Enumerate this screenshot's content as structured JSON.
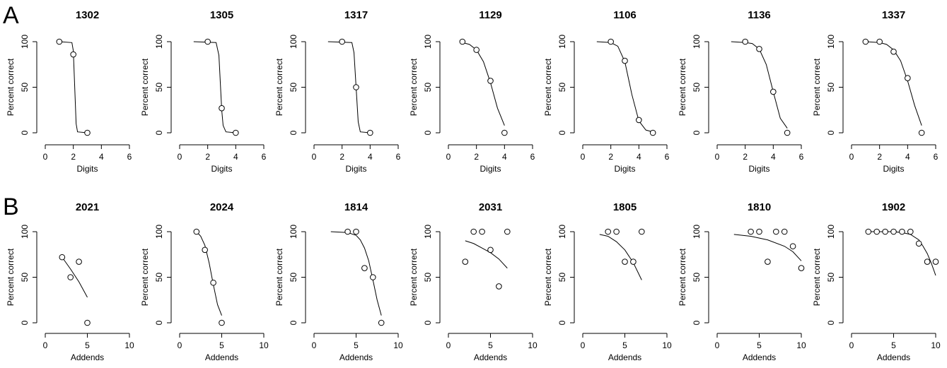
{
  "panel_labels": [
    "A",
    "B"
  ],
  "chart_data": [
    {
      "type": "scatter",
      "title": "1302",
      "xlabel": "Digits",
      "ylabel": "Percent correct",
      "xlim": [
        0,
        6
      ],
      "ylim": [
        0,
        100
      ],
      "xticks": [
        0,
        2,
        4,
        6
      ],
      "yticks": [
        0,
        50,
        100
      ],
      "x": [
        1,
        2,
        3
      ],
      "values": [
        100,
        86,
        0
      ],
      "fit": {
        "x": [
          1,
          1.9,
          2,
          2.1,
          2.2,
          2.3,
          3
        ],
        "values": [
          100,
          99,
          90,
          50,
          10,
          1,
          0
        ]
      }
    },
    {
      "type": "scatter",
      "title": "1305",
      "xlabel": "Digits",
      "ylabel": "Percent correct",
      "xlim": [
        0,
        6
      ],
      "ylim": [
        0,
        100
      ],
      "xticks": [
        0,
        2,
        4,
        6
      ],
      "yticks": [
        0,
        50,
        100
      ],
      "x": [
        2,
        3,
        4
      ],
      "values": [
        100,
        27,
        0
      ],
      "fit": {
        "x": [
          1,
          2.6,
          2.8,
          2.9,
          3,
          3.1,
          3.3,
          4
        ],
        "values": [
          100,
          99,
          85,
          55,
          25,
          8,
          1,
          0
        ]
      }
    },
    {
      "type": "scatter",
      "title": "1317",
      "xlabel": "Digits",
      "ylabel": "Percent correct",
      "xlim": [
        0,
        6
      ],
      "ylim": [
        0,
        100
      ],
      "xticks": [
        0,
        2,
        4,
        6
      ],
      "yticks": [
        0,
        50,
        100
      ],
      "x": [
        2,
        3,
        4
      ],
      "values": [
        100,
        50,
        0
      ],
      "fit": {
        "x": [
          1,
          2.7,
          2.85,
          3,
          3.15,
          3.3,
          4
        ],
        "values": [
          100,
          99,
          88,
          50,
          12,
          1,
          0
        ]
      }
    },
    {
      "type": "scatter",
      "title": "1129",
      "xlabel": "Digits",
      "ylabel": "Percent correct",
      "xlim": [
        0,
        6
      ],
      "ylim": [
        0,
        100
      ],
      "xticks": [
        0,
        2,
        4,
        6
      ],
      "yticks": [
        0,
        50,
        100
      ],
      "x": [
        1,
        2,
        3,
        4
      ],
      "values": [
        100,
        91,
        57,
        0
      ],
      "fit": {
        "x": [
          1,
          1.5,
          2,
          2.5,
          3,
          3.5,
          4
        ],
        "values": [
          99,
          97,
          91,
          78,
          55,
          27,
          8
        ]
      }
    },
    {
      "type": "scatter",
      "title": "1106",
      "xlabel": "Digits",
      "ylabel": "Percent correct",
      "xlim": [
        0,
        6
      ],
      "ylim": [
        0,
        100
      ],
      "xticks": [
        0,
        2,
        4,
        6
      ],
      "yticks": [
        0,
        50,
        100
      ],
      "x": [
        2,
        3,
        4,
        5
      ],
      "values": [
        100,
        79,
        14,
        0
      ],
      "fit": {
        "x": [
          1,
          2,
          2.5,
          3,
          3.5,
          4,
          4.5,
          5
        ],
        "values": [
          100,
          99,
          95,
          78,
          42,
          13,
          3,
          1
        ]
      }
    },
    {
      "type": "scatter",
      "title": "1136",
      "xlabel": "Digits",
      "ylabel": "Percent correct",
      "xlim": [
        0,
        6
      ],
      "ylim": [
        0,
        100
      ],
      "xticks": [
        0,
        2,
        4,
        6
      ],
      "yticks": [
        0,
        50,
        100
      ],
      "x": [
        2,
        3,
        4,
        5
      ],
      "values": [
        100,
        92,
        45,
        0
      ],
      "fit": {
        "x": [
          1,
          2,
          2.5,
          3,
          3.5,
          4,
          4.5,
          5
        ],
        "values": [
          100,
          99,
          98,
          92,
          75,
          45,
          16,
          5
        ]
      }
    },
    {
      "type": "scatter",
      "title": "1337",
      "xlabel": "Digits",
      "ylabel": "Percent correct",
      "xlim": [
        0,
        6
      ],
      "ylim": [
        0,
        100
      ],
      "xticks": [
        0,
        2,
        4,
        6
      ],
      "yticks": [
        0,
        50,
        100
      ],
      "x": [
        1,
        2,
        3,
        4,
        5
      ],
      "values": [
        100,
        100,
        89,
        60,
        0
      ],
      "fit": {
        "x": [
          1,
          2,
          2.5,
          3,
          3.5,
          4,
          4.5,
          5
        ],
        "values": [
          100,
          99,
          97,
          91,
          79,
          57,
          30,
          8
        ]
      }
    },
    {
      "type": "scatter",
      "title": "2021",
      "xlabel": "Addends",
      "ylabel": "Percent correct",
      "xlim": [
        0,
        10
      ],
      "ylim": [
        0,
        100
      ],
      "xticks": [
        0,
        5,
        10
      ],
      "yticks": [
        0,
        50,
        100
      ],
      "x": [
        2,
        3,
        4,
        5
      ],
      "values": [
        72,
        50,
        67,
        0
      ],
      "fit": {
        "x": [
          2,
          3,
          4,
          5
        ],
        "values": [
          72,
          59,
          45,
          28
        ]
      }
    },
    {
      "type": "scatter",
      "title": "2024",
      "xlabel": "Addends",
      "ylabel": "Percent correct",
      "xlim": [
        0,
        10
      ],
      "ylim": [
        0,
        100
      ],
      "xticks": [
        0,
        5,
        10
      ],
      "yticks": [
        0,
        50,
        100
      ],
      "x": [
        2,
        3,
        4,
        5
      ],
      "values": [
        100,
        80,
        44,
        0
      ],
      "fit": {
        "x": [
          2,
          2.5,
          3,
          3.5,
          4,
          4.5,
          5
        ],
        "values": [
          100,
          95,
          85,
          66,
          42,
          20,
          8
        ]
      }
    },
    {
      "type": "scatter",
      "title": "1814",
      "xlabel": "Addends",
      "ylabel": "Percent correct",
      "xlim": [
        0,
        10
      ],
      "ylim": [
        0,
        100
      ],
      "xticks": [
        0,
        5,
        10
      ],
      "yticks": [
        0,
        50,
        100
      ],
      "x": [
        4,
        5,
        6,
        7,
        8
      ],
      "values": [
        100,
        100,
        60,
        50,
        0
      ],
      "fit": {
        "x": [
          2,
          4,
          5,
          5.5,
          6,
          6.5,
          7,
          7.5,
          8
        ],
        "values": [
          100,
          99,
          96,
          91,
          82,
          68,
          47,
          25,
          8
        ]
      }
    },
    {
      "type": "scatter",
      "title": "2031",
      "xlabel": "Addends",
      "ylabel": "Percent correct",
      "xlim": [
        0,
        10
      ],
      "ylim": [
        0,
        100
      ],
      "xticks": [
        0,
        5,
        10
      ],
      "yticks": [
        0,
        50,
        100
      ],
      "x": [
        2,
        3,
        4,
        5,
        6,
        7
      ],
      "values": [
        67,
        100,
        100,
        80,
        40,
        100
      ],
      "fit": {
        "x": [
          2,
          3,
          4,
          5,
          6,
          7
        ],
        "values": [
          90,
          87,
          82,
          77,
          70,
          60
        ]
      }
    },
    {
      "type": "scatter",
      "title": "1805",
      "xlabel": "Addends",
      "ylabel": "Percent correct",
      "xlim": [
        0,
        10
      ],
      "ylim": [
        0,
        100
      ],
      "xticks": [
        0,
        5,
        10
      ],
      "yticks": [
        0,
        50,
        100
      ],
      "x": [
        3,
        4,
        5,
        6,
        7
      ],
      "values": [
        100,
        100,
        67,
        67,
        100
      ],
      "fit": {
        "x": [
          2,
          3,
          4,
          5,
          6,
          7
        ],
        "values": [
          97,
          95,
          89,
          80,
          66,
          47
        ]
      }
    },
    {
      "type": "scatter",
      "title": "1810",
      "xlabel": "Addends",
      "ylabel": "Percent correct",
      "xlim": [
        0,
        10
      ],
      "ylim": [
        0,
        100
      ],
      "xticks": [
        0,
        5,
        10
      ],
      "yticks": [
        0,
        50,
        100
      ],
      "x": [
        4,
        5,
        6,
        7,
        8,
        9,
        10
      ],
      "values": [
        100,
        100,
        67,
        100,
        100,
        84,
        60
      ],
      "fit": {
        "x": [
          2,
          4,
          6,
          8,
          9,
          10
        ],
        "values": [
          97,
          95,
          91,
          84,
          78,
          68
        ]
      }
    },
    {
      "type": "scatter",
      "title": "1902",
      "xlabel": "Addends",
      "ylabel": "Percent correct",
      "xlim": [
        0,
        10
      ],
      "ylim": [
        0,
        100
      ],
      "xticks": [
        0,
        5,
        10
      ],
      "yticks": [
        0,
        50,
        100
      ],
      "x": [
        2,
        3,
        4,
        5,
        6,
        7,
        8,
        9,
        10
      ],
      "values": [
        100,
        100,
        100,
        100,
        100,
        100,
        87,
        67,
        67
      ],
      "fit": {
        "x": [
          2,
          5,
          6,
          7,
          8,
          8.5,
          9,
          9.5,
          10
        ],
        "values": [
          100,
          100,
          99,
          97,
          91,
          84,
          76,
          65,
          52
        ]
      }
    }
  ]
}
